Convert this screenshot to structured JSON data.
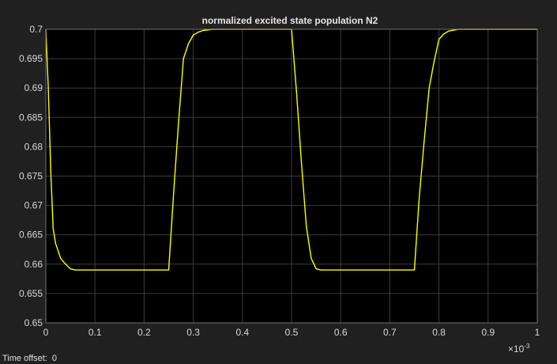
{
  "status": {
    "time_offset_label": "Time offset:",
    "time_offset_value": "0"
  },
  "colors": {
    "background": "#202020",
    "plot_background": "#000000",
    "grid": "#3c3c3c",
    "axes_frame": "#6e6e6e",
    "signal": "#ffff00",
    "text": "#d8d8d8"
  },
  "chart_data": {
    "type": "line",
    "title": "normalized excited state population N2",
    "xlabel": "",
    "ylabel": "",
    "x_exponent_label": "×10",
    "x_exponent_power": "-3",
    "xlim": [
      0,
      1
    ],
    "ylim": [
      0.65,
      0.7
    ],
    "xticks": [
      0,
      0.1,
      0.2,
      0.3,
      0.4,
      0.5,
      0.6,
      0.7,
      0.8,
      0.9,
      1
    ],
    "xtick_labels": [
      "0",
      "0.1",
      "0.2",
      "0.3",
      "0.4",
      "0.5",
      "0.6",
      "0.7",
      "0.8",
      "0.9",
      "1"
    ],
    "yticks": [
      0.65,
      0.655,
      0.66,
      0.665,
      0.67,
      0.675,
      0.68,
      0.685,
      0.69,
      0.695,
      0.7
    ],
    "ytick_labels": [
      "0.65",
      "0.655",
      "0.66",
      "0.665",
      "0.67",
      "0.675",
      "0.68",
      "0.685",
      "0.69",
      "0.695",
      "0.7"
    ],
    "grid": true,
    "series": [
      {
        "color": "#ffff00",
        "x": [
          0,
          0.005,
          0.01,
          0.015,
          0.02,
          0.03,
          0.04,
          0.05,
          0.06,
          0.25,
          0.26,
          0.27,
          0.28,
          0.29,
          0.3,
          0.31,
          0.32,
          0.34,
          0.36,
          0.5,
          0.51,
          0.52,
          0.53,
          0.54,
          0.55,
          0.56,
          0.75,
          0.76,
          0.77,
          0.78,
          0.79,
          0.8,
          0.81,
          0.82,
          0.84,
          1.0
        ],
        "y": [
          0.7,
          0.69,
          0.676,
          0.666,
          0.6635,
          0.661,
          0.66,
          0.6592,
          0.659,
          0.659,
          0.672,
          0.684,
          0.695,
          0.6975,
          0.699,
          0.6995,
          0.6998,
          0.7,
          0.7,
          0.7,
          0.6895,
          0.6775,
          0.6665,
          0.661,
          0.6592,
          0.659,
          0.659,
          0.6715,
          0.681,
          0.69,
          0.6945,
          0.6983,
          0.6992,
          0.6997,
          0.7,
          0.7
        ]
      }
    ]
  }
}
